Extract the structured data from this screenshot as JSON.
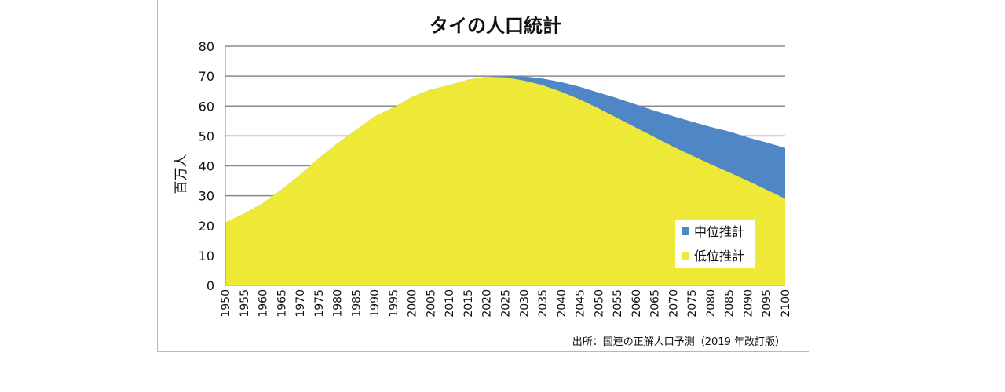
{
  "chart_data": {
    "type": "area",
    "title": "タイの人口統計",
    "ylabel": "百万人",
    "xlabel": "",
    "ylim": [
      0,
      80
    ],
    "yticks": [
      0,
      10,
      20,
      30,
      40,
      50,
      60,
      70,
      80
    ],
    "xlim": [
      1950,
      2100
    ],
    "grid": true,
    "legend": "bottom-right",
    "x": [
      1950,
      1955,
      1960,
      1965,
      1970,
      1975,
      1980,
      1985,
      1990,
      1995,
      2000,
      2005,
      2010,
      2015,
      2020,
      2025,
      2030,
      2035,
      2040,
      2045,
      2050,
      2055,
      2060,
      2065,
      2070,
      2075,
      2080,
      2085,
      2090,
      2095,
      2100
    ],
    "series": [
      {
        "name": "中位推計",
        "color": "#4f86c6",
        "values": [
          21,
          24,
          27.5,
          32,
          37,
          42.5,
          47.5,
          52,
          56.5,
          59.5,
          63,
          65.5,
          67,
          68.8,
          69.8,
          70,
          69.9,
          69.2,
          68,
          66.4,
          64.5,
          62.6,
          60.5,
          58.4,
          56.6,
          54.8,
          53,
          51.5,
          49.5,
          47.8,
          46
        ]
      },
      {
        "name": "低位推計",
        "color": "#eee836",
        "values": [
          21,
          24,
          27.5,
          32,
          37,
          42.5,
          47.5,
          52,
          56.5,
          59.5,
          63,
          65.5,
          67,
          68.8,
          69.8,
          69.6,
          68.5,
          67,
          64.8,
          62.2,
          59.2,
          56,
          52.8,
          49.6,
          46.4,
          43.5,
          40.6,
          37.8,
          35,
          32,
          29
        ]
      }
    ],
    "source": "出所：国連の正解人口予測（2019 年改訂版）"
  }
}
